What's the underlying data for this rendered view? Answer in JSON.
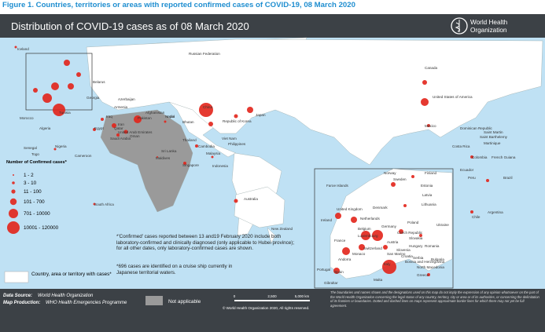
{
  "figure_title": "Figure 1. Countries, territories or areas with reported confirmed cases of COVID-19, 08 March 2020",
  "header": {
    "title": "Distribution of COVID-19 cases as of 08 March 2020",
    "logo_text": [
      "World Health",
      "Organization"
    ]
  },
  "labels": [
    "Iceland",
    "Russian Federation",
    "Canada",
    "United States of America",
    "Mexico",
    "Dominican Republic",
    "Saint Martin",
    "Saint Barthelemy",
    "Martinique",
    "Costa Rica",
    "Colombia",
    "Ecuador",
    "Peru",
    "French Guiana",
    "Brazil",
    "Chile",
    "Argentina",
    "China",
    "Japan",
    "Republic of Korea",
    "Viet Nam",
    "Philippines",
    "Cambodia",
    "Thailand",
    "Malaysia",
    "Singapore",
    "Indonesia",
    "Australia",
    "New Zealand",
    "India",
    "Nepal",
    "Bhutan",
    "Sri Lanka",
    "Maldives",
    "Afghanistan",
    "Pakistan",
    "Iran",
    "Iraq",
    "Qatar",
    "United Arab Emirates",
    "Oman",
    "Saudi Arabia",
    "Egypt",
    "Algeria",
    "Tunisia",
    "Morocco",
    "Senegal",
    "Nigeria",
    "Togo",
    "Cameroon",
    "South Africa",
    "Georgia",
    "Armenia",
    "Azerbaijan",
    "Belarus"
  ],
  "inset_labels": [
    "Faroe Islands",
    "Norway",
    "Sweden",
    "Finland",
    "Estonia",
    "Latvia",
    "Lithuania",
    "Denmark",
    "United Kingdom",
    "Ireland",
    "Netherlands",
    "Belgium",
    "Luxembourg",
    "Germany",
    "Poland",
    "Czech Republic",
    "Slovakia",
    "Ukraine",
    "Austria",
    "Hungary",
    "Switzerland",
    "France",
    "Italy",
    "Slovenia",
    "Croatia",
    "Romania",
    "Serbia",
    "Bulgaria",
    "Andorra",
    "Monaco",
    "San Marino",
    "Portugal",
    "Spain",
    "Gibraltar",
    "Malta",
    "Greece",
    "North Macedonia",
    "Bosnia and Herzegovina"
  ],
  "legend": {
    "title": "Number of Confirmed cases*",
    "classes": [
      "1 - 2",
      "3 - 10",
      "11 - 100",
      "101 - 700",
      "701 - 10000",
      "10001 - 120000"
    ],
    "area_label": "Country, area or territory with cases*"
  },
  "notes": [
    "*'Confirmed' cases reported between 13 and19 February 2020 include both laboratory-confirmed and clinically diagnosed (only applicable to Hubei province); for all other dates, only laboratory-confirmed cases are shown.",
    "*696 cases are identified on a cruise ship currently in Japanese territorial waters."
  ],
  "footer": {
    "source_label": "Data Source:",
    "source": "World Health Organization",
    "production_label": "Map Production:",
    "production": "WHO Health Emergencies Programme",
    "not_applicable": "Not applicable",
    "scale": [
      "0",
      "2,500",
      "5,000 km"
    ],
    "disclaimer": "The boundaries and names shown and the designations used on this map do not imply the expression of any opinion whatsoever on the part of the World Health Organization concerning the legal status of any country, territory, city or area or of its authorities, or concerning the delimitation of its frontiers or boundaries. Dotted and dashed lines on maps represent approximate border lines for which there may not yet be full agreement.",
    "copyright": "© World Health Organization 2020, All rights reserved."
  }
}
